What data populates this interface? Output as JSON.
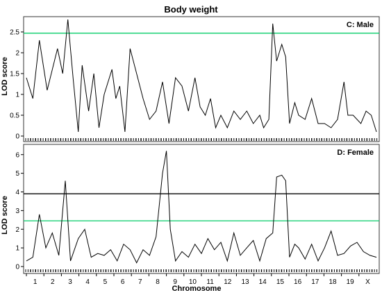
{
  "figure": {
    "title": "Body weight",
    "xlabel": "Chromosome",
    "ylabel": "LOD score"
  },
  "colors": {
    "lod_curve": "#000000",
    "threshold_significant": "#00cc66",
    "threshold_high": "#000000",
    "frame": "#333333"
  },
  "chart_data": [
    {
      "type": "line",
      "panel": "C: Male",
      "xlabel": "Chromosome",
      "ylabel": "LOD score",
      "ylim": [
        0,
        2.8
      ],
      "yticks": [
        0,
        0.5,
        1,
        1.5,
        2,
        2.5
      ],
      "chromosomes": [
        "1",
        "2",
        "3",
        "4",
        "5",
        "6",
        "7",
        "8",
        "9",
        "10",
        "11",
        "12",
        "13",
        "14",
        "15",
        "16",
        "17",
        "18",
        "19",
        "X"
      ],
      "thresholds": [
        {
          "value": 2.47,
          "color": "#00cc66"
        }
      ],
      "series": [
        {
          "points": [
            [
              1,
              1.4
            ],
            [
              1.5,
              0.9
            ],
            [
              2,
              2.3
            ],
            [
              2.6,
              1.1
            ],
            [
              3.4,
              2.1
            ],
            [
              3.8,
              1.5
            ],
            [
              4.2,
              2.8
            ],
            [
              4.6,
              1.4
            ],
            [
              5,
              0.1
            ],
            [
              5.3,
              1.7
            ],
            [
              5.8,
              0.6
            ],
            [
              6.2,
              1.5
            ],
            [
              6.6,
              0.2
            ],
            [
              7,
              1.0
            ],
            [
              7.6,
              1.6
            ],
            [
              7.9,
              0.9
            ],
            [
              8.2,
              1.2
            ],
            [
              8.6,
              0.1
            ],
            [
              9,
              2.1
            ],
            [
              9.5,
              1.5
            ],
            [
              10,
              0.9
            ],
            [
              10.5,
              0.4
            ],
            [
              11,
              0.6
            ],
            [
              11.5,
              1.3
            ],
            [
              12,
              0.3
            ],
            [
              12.5,
              1.4
            ],
            [
              13,
              1.2
            ],
            [
              13.5,
              0.6
            ],
            [
              14,
              1.4
            ],
            [
              14.4,
              0.7
            ],
            [
              14.8,
              0.5
            ],
            [
              15.2,
              0.9
            ],
            [
              15.6,
              0.2
            ],
            [
              16,
              0.5
            ],
            [
              16.5,
              0.2
            ],
            [
              17,
              0.6
            ],
            [
              17.5,
              0.4
            ],
            [
              18,
              0.6
            ],
            [
              18.5,
              0.3
            ],
            [
              19,
              0.5
            ],
            [
              19.3,
              0.2
            ],
            [
              19.7,
              0.4
            ],
            [
              20,
              2.7
            ],
            [
              20.3,
              1.8
            ],
            [
              20.7,
              2.2
            ],
            [
              21,
              1.9
            ],
            [
              21.3,
              0.3
            ],
            [
              21.7,
              0.8
            ],
            [
              22,
              0.5
            ],
            [
              22.5,
              0.4
            ],
            [
              23,
              0.9
            ],
            [
              23.5,
              0.3
            ],
            [
              24,
              0.3
            ],
            [
              24.5,
              0.2
            ],
            [
              25,
              0.4
            ],
            [
              25.5,
              1.3
            ],
            [
              25.8,
              0.5
            ],
            [
              26.2,
              0.5
            ],
            [
              26.8,
              0.3
            ],
            [
              27.2,
              0.6
            ],
            [
              27.6,
              0.5
            ],
            [
              28,
              0.1
            ]
          ]
        }
      ]
    },
    {
      "type": "line",
      "panel": "D: Female",
      "xlabel": "Chromosome",
      "ylabel": "LOD score",
      "ylim": [
        0,
        6.4
      ],
      "yticks": [
        0,
        1,
        2,
        3,
        4,
        5,
        6
      ],
      "chromosomes": [
        "1",
        "2",
        "3",
        "4",
        "5",
        "6",
        "7",
        "8",
        "9",
        "10",
        "11",
        "12",
        "13",
        "14",
        "15",
        "16",
        "17",
        "18",
        "19",
        "X"
      ],
      "thresholds": [
        {
          "value": 2.45,
          "color": "#00cc66"
        },
        {
          "value": 3.9,
          "color": "#000000"
        }
      ],
      "series": [
        {
          "points": [
            [
              1,
              0.3
            ],
            [
              1.5,
              0.5
            ],
            [
              2,
              2.8
            ],
            [
              2.5,
              1.0
            ],
            [
              3,
              1.8
            ],
            [
              3.5,
              0.6
            ],
            [
              4,
              4.6
            ],
            [
              4.4,
              0.3
            ],
            [
              5,
              1.5
            ],
            [
              5.5,
              2.0
            ],
            [
              6,
              0.5
            ],
            [
              6.5,
              0.7
            ],
            [
              7,
              0.6
            ],
            [
              7.5,
              0.9
            ],
            [
              8,
              0.3
            ],
            [
              8.5,
              1.2
            ],
            [
              9,
              0.9
            ],
            [
              9.5,
              0.2
            ],
            [
              10,
              0.9
            ],
            [
              10.5,
              0.6
            ],
            [
              11,
              1.6
            ],
            [
              11.5,
              5.0
            ],
            [
              11.8,
              6.2
            ],
            [
              12.1,
              2.0
            ],
            [
              12.5,
              0.3
            ],
            [
              13,
              0.8
            ],
            [
              13.5,
              0.5
            ],
            [
              14,
              1.2
            ],
            [
              14.5,
              0.7
            ],
            [
              15,
              1.5
            ],
            [
              15.5,
              0.9
            ],
            [
              16,
              1.3
            ],
            [
              16.5,
              0.3
            ],
            [
              17,
              1.8
            ],
            [
              17.5,
              0.6
            ],
            [
              18,
              1.0
            ],
            [
              18.5,
              1.4
            ],
            [
              19,
              0.3
            ],
            [
              19.5,
              1.5
            ],
            [
              20,
              1.8
            ],
            [
              20.3,
              4.8
            ],
            [
              20.7,
              4.9
            ],
            [
              21,
              4.6
            ],
            [
              21.3,
              0.5
            ],
            [
              21.7,
              1.2
            ],
            [
              22,
              1.0
            ],
            [
              22.5,
              0.4
            ],
            [
              23,
              1.2
            ],
            [
              23.5,
              0.3
            ],
            [
              24,
              1.0
            ],
            [
              24.5,
              1.9
            ],
            [
              25,
              0.6
            ],
            [
              25.5,
              0.7
            ],
            [
              26,
              1.1
            ],
            [
              26.5,
              1.3
            ],
            [
              27,
              0.8
            ],
            [
              27.5,
              0.6
            ],
            [
              28,
              0.5
            ]
          ]
        }
      ]
    }
  ]
}
